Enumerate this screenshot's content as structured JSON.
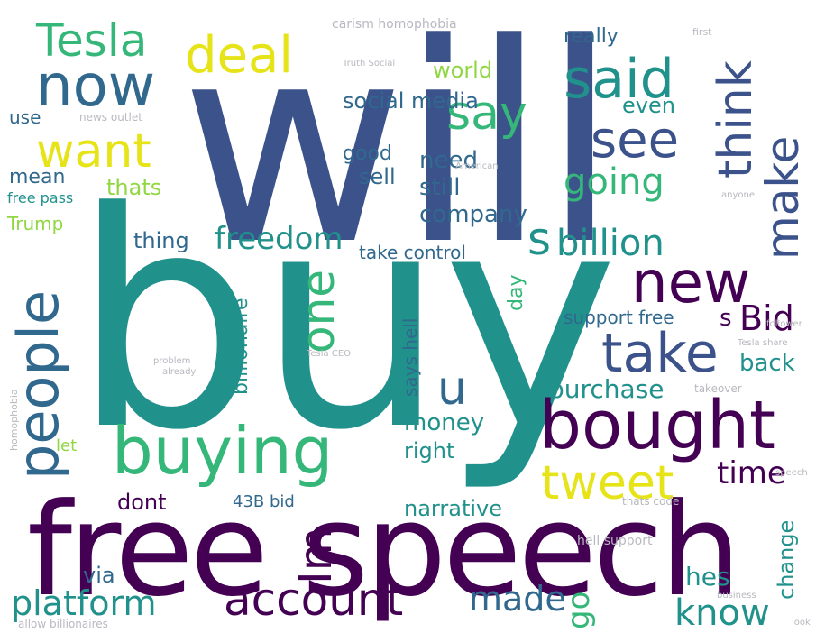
{
  "colors": {
    "dark_purple": "#440154",
    "indigo": "#3b528b",
    "blue": "#31688e",
    "teal": "#21918c",
    "green": "#35b779",
    "lime": "#90d743",
    "yellow": "#e6e419",
    "gray": "#b8b8c0"
  },
  "words": [
    {
      "text": "will",
      "color": "indigo"
    },
    {
      "text": "buy",
      "color": "teal"
    },
    {
      "text": "free speech",
      "color": "dark_purple"
    },
    {
      "text": "bought",
      "color": "dark_purple"
    },
    {
      "text": "buying",
      "color": "green"
    },
    {
      "text": "people",
      "color": "blue"
    },
    {
      "text": "now",
      "color": "blue"
    },
    {
      "text": "want",
      "color": "yellow"
    },
    {
      "text": "deal",
      "color": "yellow"
    },
    {
      "text": "Tesla",
      "color": "green"
    },
    {
      "text": "said",
      "color": "teal"
    },
    {
      "text": "say",
      "color": "green"
    },
    {
      "text": "see",
      "color": "indigo"
    },
    {
      "text": "think",
      "color": "indigo"
    },
    {
      "text": "make",
      "color": "indigo"
    },
    {
      "text": "new",
      "color": "dark_purple"
    },
    {
      "text": "take",
      "color": "indigo"
    },
    {
      "text": "account",
      "color": "dark_purple"
    },
    {
      "text": "platform",
      "color": "teal"
    },
    {
      "text": "tweet",
      "color": "yellow"
    },
    {
      "text": "one",
      "color": "green"
    },
    {
      "text": "Im",
      "color": "dark_purple"
    },
    {
      "text": "freedom",
      "color": "teal"
    },
    {
      "text": "going",
      "color": "green"
    },
    {
      "text": "billion",
      "color": "teal"
    },
    {
      "text": "s",
      "color": "teal"
    },
    {
      "text": "u",
      "color": "blue"
    },
    {
      "text": "Bid",
      "color": "dark_purple"
    },
    {
      "text": "know",
      "color": "teal"
    },
    {
      "text": "made",
      "color": "blue"
    },
    {
      "text": "time",
      "color": "dark_purple"
    },
    {
      "text": "social media",
      "color": "blue"
    },
    {
      "text": "world",
      "color": "lime"
    },
    {
      "text": "really",
      "color": "blue"
    },
    {
      "text": "even",
      "color": "teal"
    },
    {
      "text": "need",
      "color": "blue"
    },
    {
      "text": "still",
      "color": "blue"
    },
    {
      "text": "sell",
      "color": "blue"
    },
    {
      "text": "good",
      "color": "blue"
    },
    {
      "text": "company",
      "color": "blue"
    },
    {
      "text": "thing",
      "color": "blue"
    },
    {
      "text": "thats",
      "color": "lime"
    },
    {
      "text": "mean",
      "color": "blue"
    },
    {
      "text": "use",
      "color": "blue"
    },
    {
      "text": "Trump",
      "color": "lime"
    },
    {
      "text": "free pass",
      "color": "teal"
    },
    {
      "text": "take control",
      "color": "blue"
    },
    {
      "text": "support free",
      "color": "blue"
    },
    {
      "text": "s",
      "color": "dark_purple"
    },
    {
      "text": "back",
      "color": "teal"
    },
    {
      "text": "purchase",
      "color": "teal"
    },
    {
      "text": "money",
      "color": "teal"
    },
    {
      "text": "right",
      "color": "teal"
    },
    {
      "text": "narrative",
      "color": "teal"
    },
    {
      "text": "dont",
      "color": "dark_purple"
    },
    {
      "text": "43B bid",
      "color": "blue"
    },
    {
      "text": "via",
      "color": "blue"
    },
    {
      "text": "go",
      "color": "green"
    },
    {
      "text": "hes",
      "color": "teal"
    },
    {
      "text": "change",
      "color": "teal"
    },
    {
      "text": "billionaire",
      "color": "teal"
    },
    {
      "text": "says hell",
      "color": "blue"
    },
    {
      "text": "day",
      "color": "green"
    },
    {
      "text": "let",
      "color": "lime"
    },
    {
      "text": "news outlet",
      "color": "gray"
    },
    {
      "text": "hell support",
      "color": "gray"
    },
    {
      "text": "thats code",
      "color": "gray"
    },
    {
      "text": "takeover",
      "color": "gray"
    },
    {
      "text": "Tesla share",
      "color": "gray"
    },
    {
      "text": "Tesla CEO",
      "color": "gray"
    },
    {
      "text": "follower",
      "color": "gray"
    },
    {
      "text": "Truth Social",
      "color": "gray"
    },
    {
      "text": "homophobia",
      "color": "gray"
    },
    {
      "text": "carism homophobia",
      "color": "gray"
    },
    {
      "text": "allow billionaires",
      "color": "gray"
    },
    {
      "text": "American",
      "color": "gray"
    },
    {
      "text": "anyone",
      "color": "gray"
    },
    {
      "text": "problem",
      "color": "gray"
    },
    {
      "text": "already",
      "color": "gray"
    },
    {
      "text": "speech",
      "color": "gray"
    },
    {
      "text": "business",
      "color": "gray"
    },
    {
      "text": "first",
      "color": "gray"
    },
    {
      "text": "look",
      "color": "gray"
    }
  ]
}
